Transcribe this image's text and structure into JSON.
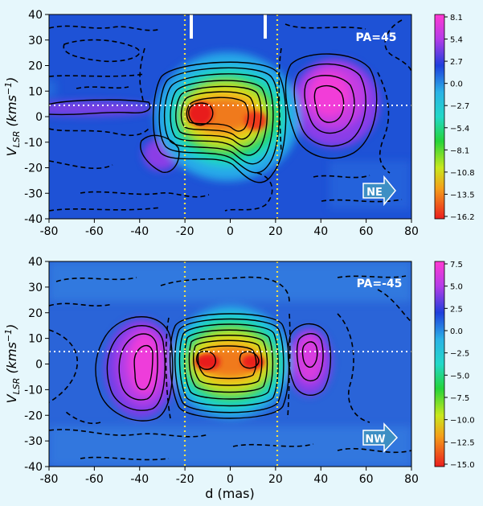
{
  "chart_data": [
    {
      "type": "heatmap",
      "panel": "top",
      "title": "",
      "xlabel": "",
      "ylabel": "V_LSR (kms⁻¹)",
      "ylabel_main": "V",
      "ylabel_sub": "LSR",
      "ylabel_unit": " (kms",
      "ylabel_exp": "−1",
      "ylabel_close": ")",
      "xlim": [
        -80,
        80
      ],
      "ylim": [
        -40,
        40
      ],
      "xticks": [
        -80,
        -60,
        -40,
        -20,
        0,
        20,
        40,
        60,
        80
      ],
      "yticks": [
        -40,
        -30,
        -20,
        -10,
        0,
        10,
        20,
        30,
        40
      ],
      "pa_label": "PA=45",
      "direction_label": "NE",
      "colorbar": {
        "min": -16.2,
        "max": 8.1,
        "ticks": [
          "8.1",
          "5.4",
          "2.7",
          "0.0",
          "−2.7",
          "−5.4",
          "−8.1",
          "−10.8",
          "−13.5",
          "−16.2"
        ]
      },
      "vertical_lines_x": [
        -20,
        20
      ],
      "horizontal_line_y": 5,
      "top_markers_x": [
        -17,
        15
      ],
      "features": [
        {
          "x": -15,
          "y": 0,
          "value": -16.2
        },
        {
          "x": 11,
          "y": 0,
          "value": -15.0
        },
        {
          "x": 42,
          "y": 7,
          "value": 7.5
        },
        {
          "x": -32,
          "y": -16,
          "value": 3.5
        },
        {
          "x": -55,
          "y": 3,
          "value": 3.0
        }
      ]
    },
    {
      "type": "heatmap",
      "panel": "bottom",
      "title": "",
      "xlabel": "d (mas)",
      "ylabel": "V_LSR (kms⁻¹)",
      "ylabel_main": "V",
      "ylabel_sub": "LSR",
      "ylabel_unit": " (kms",
      "ylabel_exp": "−1",
      "ylabel_close": ")",
      "xlim": [
        -80,
        80
      ],
      "ylim": [
        -40,
        40
      ],
      "xticks": [
        -80,
        -60,
        -40,
        -20,
        0,
        20,
        40,
        60,
        80
      ],
      "yticks": [
        -40,
        -30,
        -20,
        -10,
        0,
        10,
        20,
        30,
        40
      ],
      "pa_label": "PA=-45",
      "direction_label": "NW",
      "colorbar": {
        "min": -15.0,
        "max": 7.5,
        "ticks": [
          "7.5",
          "5.0",
          "2.5",
          "0.0",
          "−2.5",
          "−5.0",
          "−7.5",
          "−10.0",
          "−12.5",
          "−15.0"
        ]
      },
      "vertical_lines_x": [
        -20,
        20
      ],
      "horizontal_line_y": 5,
      "top_markers_x": [],
      "features": [
        {
          "x": -12,
          "y": 1,
          "value": -15.0
        },
        {
          "x": 10,
          "y": 1,
          "value": -14.5
        },
        {
          "x": -35,
          "y": 0,
          "value": 7.5
        },
        {
          "x": 35,
          "y": 3,
          "value": 6.5
        }
      ]
    }
  ],
  "colors": {
    "page_bg": "#e6f7fc",
    "plot_bg": "#1e52d6",
    "dotted_line": "#f4e14a",
    "arrow_fill": "#3d8fc4"
  }
}
